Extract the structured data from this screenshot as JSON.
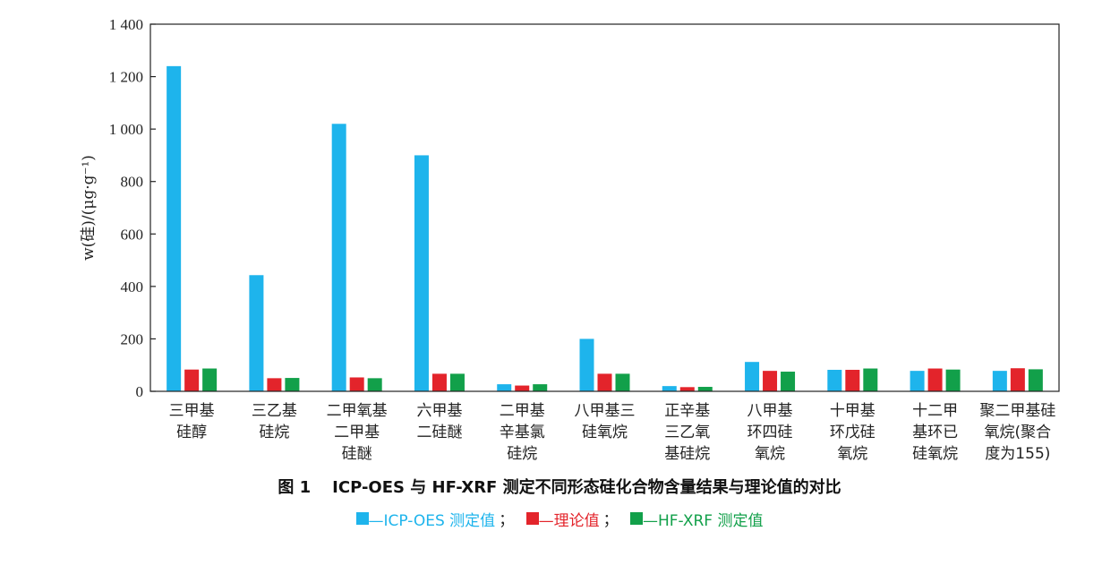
{
  "caption": {
    "number": "图 1",
    "text": "ICP-OES 与 HF-XRF 测定不同形态硅化合物含量结果与理论值的对比"
  },
  "legend": {
    "items": [
      {
        "label": "—ICP-OES 测定值",
        "color": "#1eb4ec"
      },
      {
        "label": "—理论值",
        "color": "#e3242b"
      },
      {
        "label": "—HF-XRF 测定值",
        "color": "#12a04a"
      }
    ],
    "separator": "；"
  },
  "chart_data": {
    "type": "bar",
    "ylabel": "w(硅)/(μg·g⁻¹)",
    "ylim": [
      0,
      1400
    ],
    "yticks": [
      0,
      200,
      400,
      600,
      800,
      1000,
      1200,
      1400
    ],
    "ytick_labels": [
      "0",
      "200",
      "400",
      "600",
      "800",
      "1 000",
      "1 200",
      "1 400"
    ],
    "grid": false,
    "legend_position": "bottom",
    "categories": [
      [
        "三甲基",
        "硅醇"
      ],
      [
        "三乙基",
        "硅烷"
      ],
      [
        "二甲氧基",
        "二甲基",
        "硅醚"
      ],
      [
        "六甲基",
        "二硅醚"
      ],
      [
        "二甲基",
        "辛基氯",
        "硅烷"
      ],
      [
        "八甲基三",
        "硅氧烷"
      ],
      [
        "正辛基",
        "三乙氧",
        "基硅烷"
      ],
      [
        "八甲基",
        "环四硅",
        "氧烷"
      ],
      [
        "十甲基",
        "环戊硅",
        "氧烷"
      ],
      [
        "十二甲",
        "基环已",
        "硅氧烷"
      ],
      [
        "聚二甲基硅",
        "氧烷(聚合",
        "度为155)"
      ]
    ],
    "series": [
      {
        "name": "ICP-OES 测定值",
        "color": "#1eb4ec",
        "values": [
          1240,
          443,
          1020,
          900,
          27,
          200,
          20,
          112,
          82,
          78,
          78
        ]
      },
      {
        "name": "理论值",
        "color": "#e3242b",
        "values": [
          83,
          50,
          53,
          67,
          22,
          67,
          16,
          78,
          82,
          87,
          88
        ]
      },
      {
        "name": "HF-XRF 测定值",
        "color": "#12a04a",
        "values": [
          87,
          51,
          50,
          67,
          27,
          67,
          17,
          75,
          87,
          83,
          84
        ]
      }
    ]
  }
}
